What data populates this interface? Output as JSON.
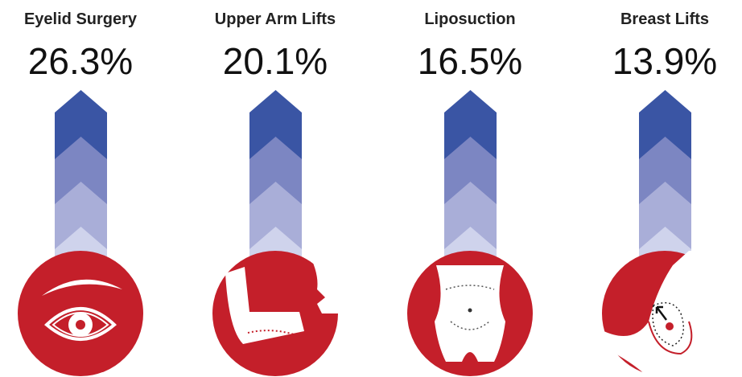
{
  "items": [
    {
      "label": "Eyelid Surgery",
      "value": "26.3%"
    },
    {
      "label": "Upper Arm Lifts",
      "value": "20.1%"
    },
    {
      "label": "Liposuction",
      "value": "16.5%"
    },
    {
      "label": "Breast Lifts",
      "value": "13.9%"
    }
  ]
}
